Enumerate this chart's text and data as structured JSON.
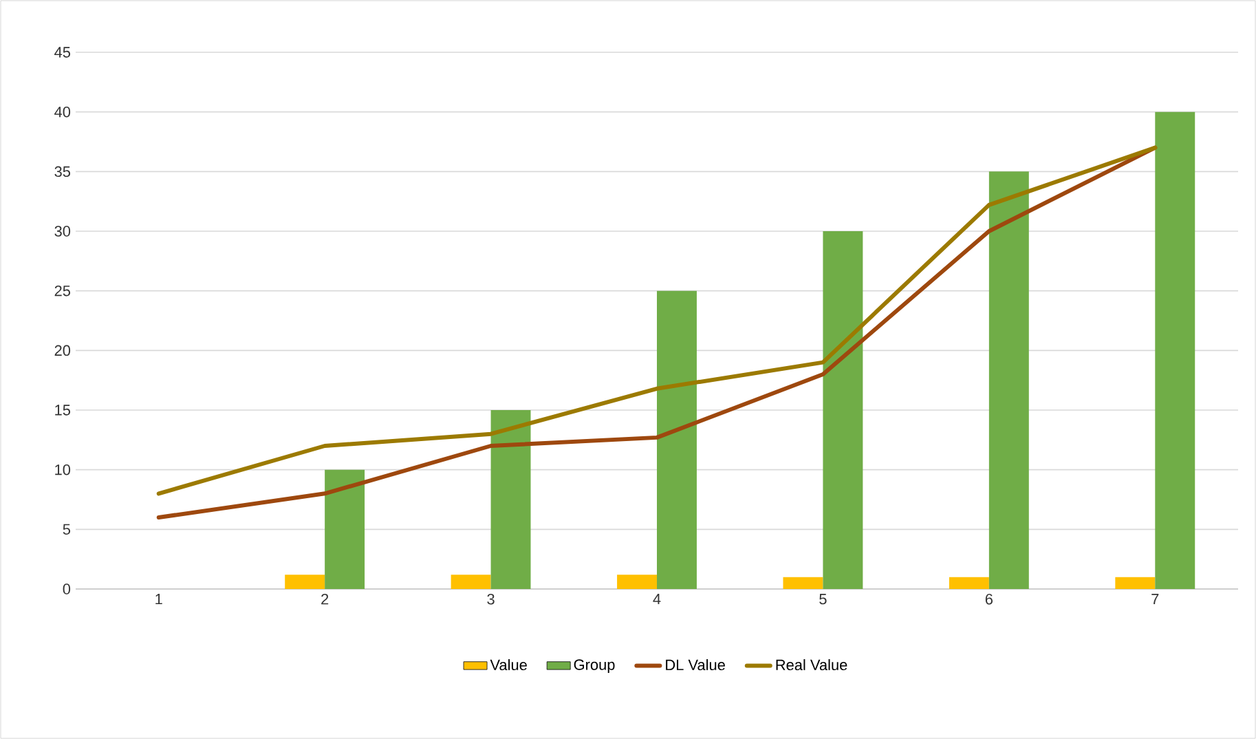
{
  "chart_data": {
    "type": "bar",
    "categories": [
      "1",
      "2",
      "3",
      "4",
      "5",
      "6",
      "7"
    ],
    "series": [
      {
        "name": "Value",
        "color": "#ffc000",
        "values": [
          null,
          1.2,
          1.2,
          1.2,
          1,
          1,
          1
        ]
      },
      {
        "name": "Group",
        "color": "#70ad47",
        "values": [
          null,
          10,
          15,
          25,
          30,
          35,
          40
        ]
      },
      {
        "name": "DL Value",
        "type": "line",
        "color": "#9e480e",
        "values": [
          6,
          8,
          12,
          12.7,
          18,
          30,
          37
        ]
      },
      {
        "name": "Real Value",
        "type": "line",
        "color": "#9c7a00",
        "values": [
          8,
          12,
          13,
          16.8,
          19,
          32.2,
          37
        ]
      }
    ],
    "ylim": [
      0,
      45
    ],
    "yticks": [
      0,
      5,
      10,
      15,
      20,
      25,
      30,
      35,
      40,
      45
    ],
    "grid": "y",
    "legend": "bottom"
  }
}
